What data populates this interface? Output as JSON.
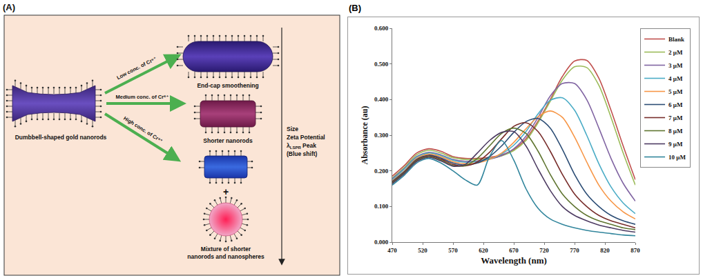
{
  "diagram": {
    "panel_label": "(A)",
    "start": {
      "label": "Dumbbell-shaped gold nanorods"
    },
    "arrows": [
      {
        "label": "Low conc. of Cr⁶⁺"
      },
      {
        "label": "Medium conc. of Cr⁶⁺"
      },
      {
        "label": "High conc. of Cr⁶⁺"
      }
    ],
    "results": [
      {
        "label": "End-cap smoothening"
      },
      {
        "label": "Shorter nanorods"
      },
      {
        "label": "Mixture of shorter nanorods and nanospheres",
        "plus": "+"
      }
    ],
    "trend": {
      "labels": [
        "Size",
        "Zeta Potential"
      ],
      "peak": {
        "symbol": "λ",
        "subscript": "LSPR",
        "text": "Peak (Blue shift)"
      }
    }
  },
  "chart_data": {
    "type": "line",
    "panel_label": "(B)",
    "xlabel": "Wavelength (nm)",
    "ylabel": "Absorbance (au)",
    "x": [
      470,
      490,
      510,
      530,
      550,
      570,
      590,
      610,
      630,
      650,
      670,
      690,
      710,
      730,
      750,
      770,
      790,
      810,
      830,
      850,
      870
    ],
    "series": [
      {
        "name": "Blank",
        "color": "#C0504D",
        "values": [
          0.185,
          0.215,
          0.25,
          0.262,
          0.255,
          0.24,
          0.235,
          0.235,
          0.238,
          0.245,
          0.26,
          0.29,
          0.34,
          0.4,
          0.465,
          0.508,
          0.51,
          0.46,
          0.37,
          0.27,
          0.175
        ]
      },
      {
        "name": "2 μM",
        "color": "#9BBB59",
        "values": [
          0.18,
          0.21,
          0.245,
          0.258,
          0.25,
          0.237,
          0.232,
          0.232,
          0.235,
          0.242,
          0.257,
          0.285,
          0.335,
          0.395,
          0.455,
          0.492,
          0.49,
          0.44,
          0.35,
          0.25,
          0.16
        ]
      },
      {
        "name": "3 μM",
        "color": "#8064A2",
        "values": [
          0.178,
          0.207,
          0.24,
          0.252,
          0.245,
          0.232,
          0.227,
          0.228,
          0.233,
          0.243,
          0.262,
          0.297,
          0.35,
          0.41,
          0.445,
          0.445,
          0.4,
          0.32,
          0.235,
          0.165,
          0.115
        ]
      },
      {
        "name": "4 μM",
        "color": "#4BACC6",
        "values": [
          0.175,
          0.205,
          0.238,
          0.25,
          0.243,
          0.23,
          0.224,
          0.226,
          0.233,
          0.247,
          0.272,
          0.31,
          0.36,
          0.398,
          0.405,
          0.37,
          0.3,
          0.22,
          0.155,
          0.11,
          0.08
        ]
      },
      {
        "name": "5 μM",
        "color": "#F79646",
        "values": [
          0.172,
          0.2,
          0.235,
          0.247,
          0.24,
          0.226,
          0.22,
          0.222,
          0.232,
          0.25,
          0.28,
          0.318,
          0.352,
          0.368,
          0.35,
          0.295,
          0.225,
          0.16,
          0.115,
          0.085,
          0.065
        ]
      },
      {
        "name": "6 μM",
        "color": "#2C4D75",
        "values": [
          0.17,
          0.198,
          0.232,
          0.244,
          0.236,
          0.222,
          0.216,
          0.222,
          0.24,
          0.27,
          0.308,
          0.338,
          0.347,
          0.32,
          0.26,
          0.19,
          0.135,
          0.1,
          0.075,
          0.06,
          0.05
        ]
      },
      {
        "name": "7 μM",
        "color": "#772C2A",
        "values": [
          0.168,
          0.196,
          0.23,
          0.242,
          0.233,
          0.218,
          0.214,
          0.225,
          0.252,
          0.29,
          0.325,
          0.335,
          0.31,
          0.255,
          0.19,
          0.135,
          0.1,
          0.075,
          0.06,
          0.05,
          0.04
        ]
      },
      {
        "name": "8 μM",
        "color": "#5F7530",
        "values": [
          0.166,
          0.194,
          0.228,
          0.24,
          0.23,
          0.215,
          0.215,
          0.235,
          0.27,
          0.305,
          0.32,
          0.305,
          0.255,
          0.19,
          0.135,
          0.1,
          0.075,
          0.06,
          0.05,
          0.04,
          0.035
        ]
      },
      {
        "name": "9 μM",
        "color": "#4D3B62",
        "values": [
          0.164,
          0.192,
          0.226,
          0.238,
          0.228,
          0.213,
          0.218,
          0.25,
          0.285,
          0.308,
          0.31,
          0.27,
          0.205,
          0.145,
          0.1,
          0.075,
          0.06,
          0.048,
          0.04,
          0.033,
          0.028
        ]
      },
      {
        "name": "10 μM",
        "color": "#31859C",
        "values": [
          0.16,
          0.188,
          0.222,
          0.235,
          0.222,
          0.2,
          0.175,
          0.16,
          0.24,
          0.285,
          0.23,
          0.15,
          0.095,
          0.065,
          0.05,
          0.04,
          0.033,
          0.028,
          0.024,
          0.02,
          0.018
        ]
      }
    ],
    "xlim": [
      470,
      870
    ],
    "xticks": [
      470,
      520,
      570,
      620,
      670,
      720,
      770,
      820,
      870
    ],
    "ylim": [
      0,
      0.6
    ],
    "yticks": [
      {
        "value": 0,
        "label": "0.000"
      },
      {
        "value": 0.1,
        "label": "0.100"
      },
      {
        "value": 0.2,
        "label": "0.200"
      },
      {
        "value": 0.3,
        "label": "0.300"
      },
      {
        "value": 0.4,
        "label": "0.400"
      },
      {
        "value": 0.5,
        "label": "0.500"
      },
      {
        "value": 0.6,
        "label": "0.600"
      }
    ],
    "grid": false,
    "legend": "right"
  }
}
